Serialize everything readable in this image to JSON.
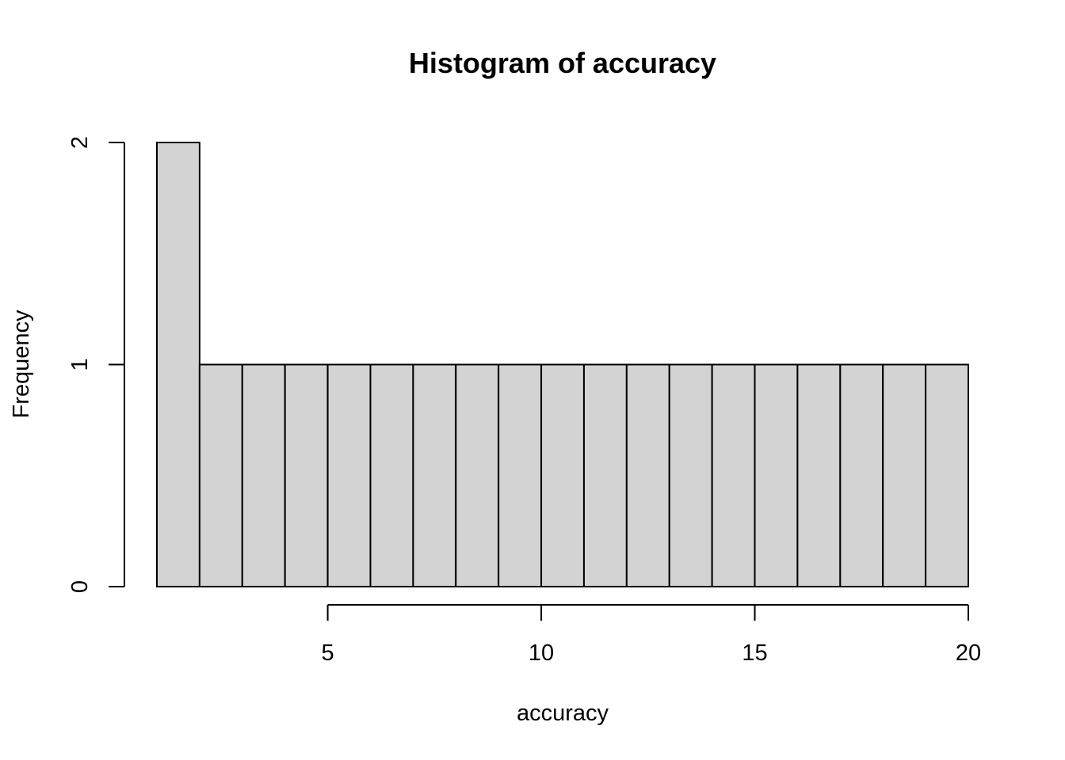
{
  "chart_data": {
    "type": "bar",
    "title": "Histogram of accuracy",
    "xlabel": "accuracy",
    "ylabel": "Frequency",
    "bins": [
      {
        "x0": 1,
        "x1": 2,
        "count": 2
      },
      {
        "x0": 2,
        "x1": 3,
        "count": 1
      },
      {
        "x0": 3,
        "x1": 4,
        "count": 1
      },
      {
        "x0": 4,
        "x1": 5,
        "count": 1
      },
      {
        "x0": 5,
        "x1": 6,
        "count": 1
      },
      {
        "x0": 6,
        "x1": 7,
        "count": 1
      },
      {
        "x0": 7,
        "x1": 8,
        "count": 1
      },
      {
        "x0": 8,
        "x1": 9,
        "count": 1
      },
      {
        "x0": 9,
        "x1": 10,
        "count": 1
      },
      {
        "x0": 10,
        "x1": 11,
        "count": 1
      },
      {
        "x0": 11,
        "x1": 12,
        "count": 1
      },
      {
        "x0": 12,
        "x1": 13,
        "count": 1
      },
      {
        "x0": 13,
        "x1": 14,
        "count": 1
      },
      {
        "x0": 14,
        "x1": 15,
        "count": 1
      },
      {
        "x0": 15,
        "x1": 16,
        "count": 1
      },
      {
        "x0": 16,
        "x1": 17,
        "count": 1
      },
      {
        "x0": 17,
        "x1": 18,
        "count": 1
      },
      {
        "x0": 18,
        "x1": 19,
        "count": 1
      },
      {
        "x0": 19,
        "x1": 20,
        "count": 1
      }
    ],
    "x_ticks": [
      5,
      10,
      15,
      20
    ],
    "y_ticks": [
      0,
      1,
      2
    ],
    "xlim": [
      1,
      20
    ],
    "ylim": [
      0,
      2
    ],
    "grid": false,
    "bar_fill": "#d3d3d3",
    "bar_stroke": "#000000"
  }
}
